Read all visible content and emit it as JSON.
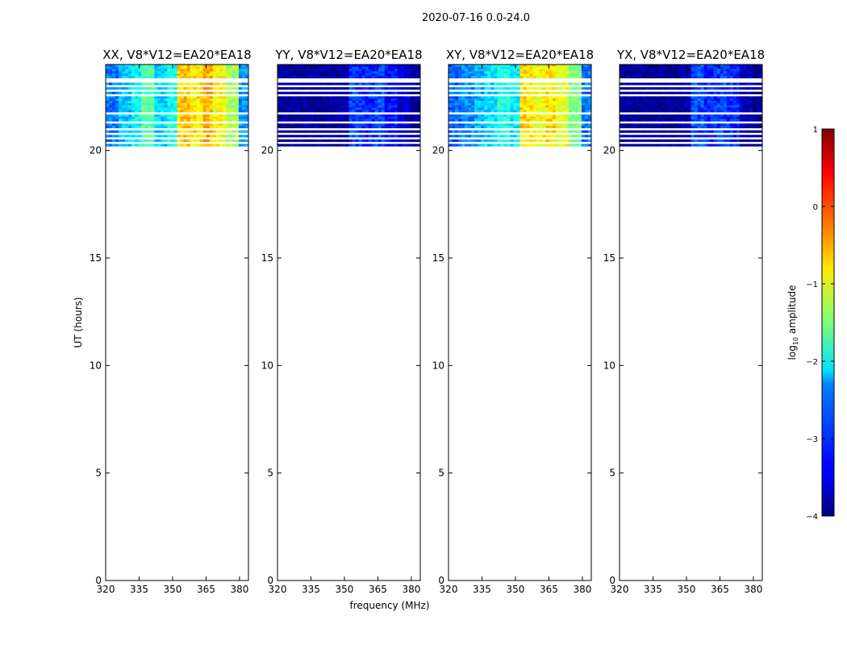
{
  "figure": {
    "suptitle": "2020-07-16 0.0-24.0",
    "xlabel": "frequency (MHz)",
    "ylabel": "UT (hours)"
  },
  "colorbar": {
    "label": "log10 amplitude",
    "label_prefix": "log",
    "label_sub": "10",
    "label_suffix": " amplitude",
    "ticks": [
      "1",
      "0",
      "−1",
      "−2",
      "−3",
      "−4"
    ],
    "range": [
      -4,
      1
    ],
    "colormap": "jet"
  },
  "chart_data": [
    {
      "type": "heatmap",
      "title": "XX, V8*V12=EA20*EA18",
      "x_range_mhz": [
        320,
        384
      ],
      "y_range_hours": [
        0,
        24
      ],
      "x_ticks": [
        "320",
        "335",
        "350",
        "365",
        "380"
      ],
      "y_ticks": [
        "0",
        "5",
        "10",
        "15",
        "20"
      ],
      "data_extent_hours": [
        20.2,
        24.0
      ],
      "mean_log_amp_by_band": [
        -2.8,
        -2.4,
        -2.1,
        -1.7,
        -2.3,
        -2.0,
        -0.6,
        -0.8,
        -0.5,
        -0.9,
        -1.3,
        -2.6
      ]
    },
    {
      "type": "heatmap",
      "title": "YY, V8*V12=EA20*EA18",
      "x_range_mhz": [
        320,
        384
      ],
      "y_range_hours": [
        0,
        24
      ],
      "x_ticks": [
        "320",
        "335",
        "350",
        "365",
        "380"
      ],
      "y_ticks": [
        "0",
        "5",
        "10",
        "15",
        "20"
      ],
      "data_extent_hours": [
        20.2,
        24.0
      ],
      "mean_log_amp_by_band": [
        -3.9,
        -3.9,
        -3.9,
        -3.9,
        -3.9,
        -3.8,
        -3.1,
        -3.2,
        -3.0,
        -3.3,
        -3.6,
        -3.9
      ]
    },
    {
      "type": "heatmap",
      "title": "XY, V8*V12=EA20*EA18",
      "x_range_mhz": [
        320,
        384
      ],
      "y_range_hours": [
        0,
        24
      ],
      "x_ticks": [
        "320",
        "335",
        "350",
        "365",
        "380"
      ],
      "y_ticks": [
        "0",
        "5",
        "10",
        "15",
        "20"
      ],
      "data_extent_hours": [
        20.2,
        24.0
      ],
      "mean_log_amp_by_band": [
        -2.9,
        -2.7,
        -2.5,
        -2.3,
        -2.0,
        -2.2,
        -0.7,
        -0.9,
        -0.7,
        -1.0,
        -1.5,
        -2.8
      ]
    },
    {
      "type": "heatmap",
      "title": "YX, V8*V12=EA20*EA18",
      "x_range_mhz": [
        320,
        384
      ],
      "y_range_hours": [
        0,
        24
      ],
      "x_ticks": [
        "320",
        "335",
        "350",
        "365",
        "380"
      ],
      "y_ticks": [
        "0",
        "5",
        "10",
        "15",
        "20"
      ],
      "data_extent_hours": [
        20.2,
        24.0
      ],
      "mean_log_amp_by_band": [
        -3.9,
        -3.9,
        -3.9,
        -3.9,
        -3.9,
        -3.8,
        -3.0,
        -3.2,
        -3.1,
        -3.2,
        -3.7,
        -3.9
      ]
    }
  ]
}
